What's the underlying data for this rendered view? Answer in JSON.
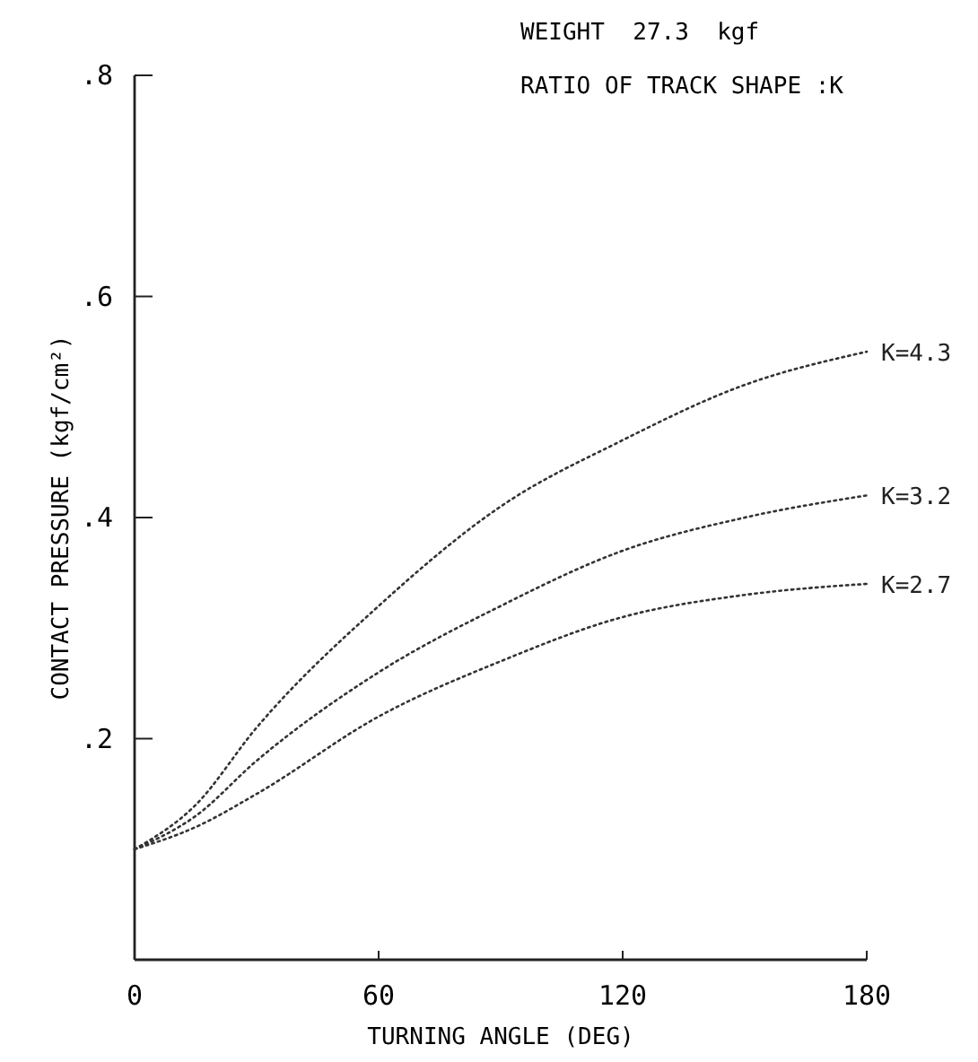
{
  "chart_data": {
    "type": "line",
    "xlabel": "TURNING ANGLE (DEG)",
    "ylabel": "CONTACT PRESSURE (kgf/cm²)",
    "annotations": [
      "WEIGHT  27.3  kgf",
      "RATIO OF TRACK SHAPE :K"
    ],
    "x": [
      0,
      15,
      30,
      60,
      90,
      120,
      150,
      180
    ],
    "series": [
      {
        "name": "K=4.3",
        "color": "#333333",
        "values": [
          0.1,
          0.14,
          0.21,
          0.32,
          0.41,
          0.47,
          0.52,
          0.55
        ]
      },
      {
        "name": "K=3.2",
        "color": "#333333",
        "values": [
          0.1,
          0.13,
          0.18,
          0.26,
          0.32,
          0.37,
          0.4,
          0.42
        ]
      },
      {
        "name": "K=2.7",
        "color": "#333333",
        "values": [
          0.1,
          0.12,
          0.15,
          0.22,
          0.27,
          0.31,
          0.33,
          0.34
        ]
      }
    ],
    "xlim": [
      0,
      180
    ],
    "xticks": [
      0,
      60,
      120,
      180
    ],
    "ylim": [
      0,
      0.8
    ],
    "yticks": [
      {
        "value": 0.2,
        "label": ".2"
      },
      {
        "value": 0.4,
        "label": ".4"
      },
      {
        "value": 0.6,
        "label": ".6"
      },
      {
        "value": 0.8,
        "label": ".8"
      }
    ],
    "grid": false,
    "marker": "none",
    "line_style": "dotted"
  }
}
